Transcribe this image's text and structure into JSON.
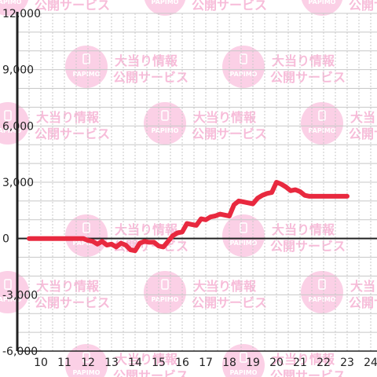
{
  "chart_data": {
    "type": "line",
    "x_ticks": [
      "10",
      "11",
      "12",
      "13",
      "14",
      "15",
      "16",
      "17",
      "18",
      "19",
      "20",
      "21",
      "22",
      "23",
      "24"
    ],
    "y_ticks": [
      "12,000",
      "9,000",
      "6,000",
      "3,000",
      "0",
      "-3,000",
      "-6,000"
    ],
    "xlim": [
      9.5,
      24
    ],
    "ylim": [
      -6000,
      12000
    ],
    "grid": true,
    "series": [
      {
        "color": "#e8293f",
        "x": [
          9.5,
          10,
          10.5,
          11,
          11.5,
          11.8,
          12.0,
          12.2,
          12.4,
          12.6,
          12.8,
          13.0,
          13.2,
          13.4,
          13.6,
          13.8,
          14.0,
          14.2,
          14.4,
          14.6,
          14.8,
          15.0,
          15.2,
          15.4,
          15.6,
          15.8,
          16.0,
          16.2,
          16.4,
          16.6,
          16.8,
          17.0,
          17.2,
          17.4,
          17.6,
          17.8,
          18.0,
          18.2,
          18.4,
          18.6,
          18.8,
          19.0,
          19.2,
          19.4,
          19.6,
          19.8,
          20.0,
          20.2,
          20.4,
          20.6,
          20.8,
          21.0,
          21.2,
          21.4,
          21.6,
          21.8,
          22.0,
          22.2,
          22.4,
          22.6,
          22.8,
          23.0
        ],
        "y": [
          0,
          0,
          0,
          0,
          0,
          0,
          -100,
          -150,
          -300,
          -150,
          -350,
          -300,
          -450,
          -250,
          -350,
          -600,
          -650,
          -250,
          -150,
          -200,
          -200,
          -400,
          -450,
          -150,
          150,
          300,
          350,
          800,
          750,
          700,
          1050,
          1000,
          1150,
          1200,
          1300,
          1250,
          1200,
          1800,
          2000,
          1950,
          1900,
          1850,
          2150,
          2300,
          2400,
          2450,
          3000,
          2900,
          2750,
          2550,
          2600,
          2500,
          2300,
          2250,
          2250,
          2250,
          2250,
          2250,
          2250,
          2250,
          2250,
          2250
        ]
      }
    ]
  },
  "watermark": {
    "brand": "PAPIMO",
    "line1": "大当り情報",
    "line2": "公開サービス",
    "circle_color": "#fbd0e6",
    "text_color": "#f7bcd9"
  }
}
